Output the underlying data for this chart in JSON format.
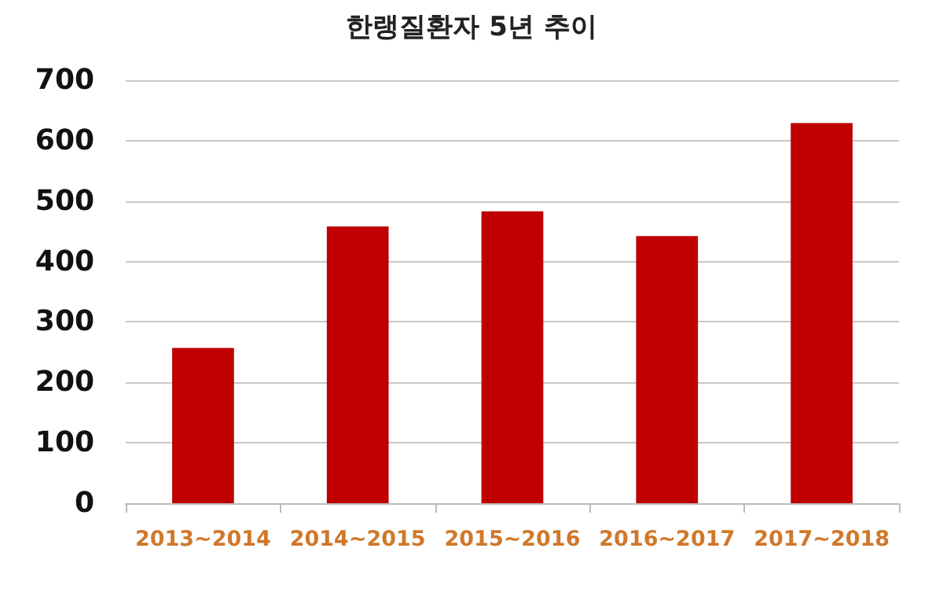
{
  "chart_data": {
    "type": "bar",
    "title": "한랭질환자 5년 추이",
    "categories": [
      "2013~2014",
      "2014~2015",
      "2015~2016",
      "2016~2017",
      "2017~2018"
    ],
    "series": [
      {
        "color": "#c00000",
        "values": [
          257,
          458,
          483,
          442,
          629
        ]
      }
    ],
    "ylim": [
      0,
      700
    ],
    "yticks": [
      0,
      100,
      200,
      300,
      400,
      500,
      600,
      700
    ],
    "grid": "y"
  }
}
